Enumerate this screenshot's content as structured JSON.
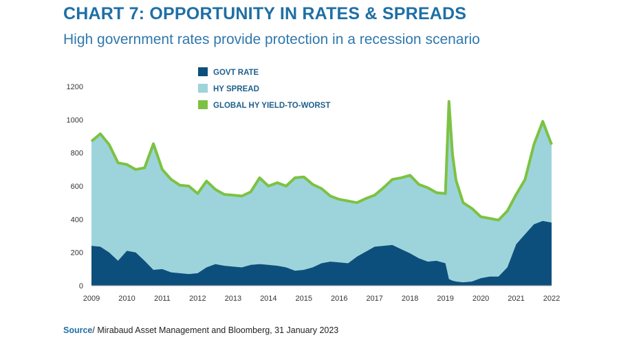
{
  "header": {
    "title": "CHART 7: OPPORTUNITY IN RATES & SPREADS",
    "subtitle": "High government rates provide protection in a recession scenario"
  },
  "footer": {
    "source_label": "Source",
    "source_text": "/ Mirabaud Asset Management and Bloomberg, 31 January 2023"
  },
  "colors": {
    "govt_rate": "#0d4f7c",
    "hy_spread": "#9dd4dc",
    "ytw": "#7cc242"
  },
  "chart_data": {
    "type": "area",
    "title": "CHART 7: OPPORTUNITY IN RATES & SPREADS",
    "subtitle": "High government rates provide protection in a recession scenario",
    "xlabel": "",
    "ylabel": "",
    "ylim": [
      0,
      1200
    ],
    "xlim": [
      2009,
      2022
    ],
    "grid": false,
    "legend_position": "top-center",
    "x_ticks": [
      "2009",
      "2010",
      "2011",
      "2012",
      "2013",
      "2014",
      "2015",
      "2016",
      "2017",
      "2018",
      "2019",
      "2020",
      "2021",
      "2022"
    ],
    "y_ticks": [
      "0",
      "200",
      "400",
      "600",
      "800",
      "1000",
      "1200"
    ],
    "x": [
      2009.0,
      2009.25,
      2009.5,
      2009.75,
      2010.0,
      2010.25,
      2010.5,
      2010.75,
      2011.0,
      2011.25,
      2011.5,
      2011.75,
      2012.0,
      2012.25,
      2012.5,
      2012.75,
      2013.0,
      2013.25,
      2013.5,
      2013.75,
      2014.0,
      2014.25,
      2014.5,
      2014.75,
      2015.0,
      2015.25,
      2015.5,
      2015.75,
      2016.0,
      2016.25,
      2016.5,
      2016.75,
      2017.0,
      2017.25,
      2017.5,
      2017.75,
      2018.0,
      2018.25,
      2018.5,
      2018.75,
      2019.0,
      2019.1,
      2019.2,
      2019.3,
      2019.5,
      2019.75,
      2020.0,
      2020.25,
      2020.5,
      2020.75,
      2021.0,
      2021.25,
      2021.5,
      2021.75,
      2022.0
    ],
    "series": [
      {
        "name": "GOVT RATE",
        "stacked": true,
        "values": [
          240,
          235,
          200,
          150,
          210,
          200,
          150,
          95,
          100,
          80,
          75,
          70,
          75,
          110,
          130,
          120,
          115,
          110,
          125,
          130,
          125,
          120,
          110,
          90,
          95,
          110,
          135,
          145,
          140,
          135,
          175,
          205,
          235,
          240,
          245,
          220,
          195,
          165,
          145,
          150,
          135,
          40,
          30,
          25,
          20,
          25,
          45,
          55,
          55,
          110,
          250,
          310,
          370,
          390,
          380
        ]
      },
      {
        "name": "HY SPREAD",
        "stacked": true,
        "values": [
          630,
          680,
          650,
          590,
          520,
          500,
          560,
          760,
          600,
          560,
          530,
          530,
          480,
          520,
          450,
          430,
          430,
          430,
          440,
          520,
          475,
          500,
          490,
          560,
          560,
          500,
          450,
          395,
          380,
          375,
          325,
          320,
          310,
          350,
          395,
          430,
          470,
          445,
          445,
          410,
          420,
          1070,
          760,
          610,
          480,
          440,
          370,
          350,
          340,
          340,
          300,
          330,
          480,
          600,
          470
        ]
      },
      {
        "name": "GLOBAL HY YIELD-TO-WORST",
        "type": "line",
        "values": [
          870,
          915,
          850,
          740,
          730,
          700,
          710,
          855,
          700,
          640,
          605,
          600,
          555,
          630,
          580,
          550,
          545,
          540,
          565,
          650,
          600,
          620,
          600,
          650,
          655,
          610,
          585,
          540,
          520,
          510,
          500,
          525,
          545,
          590,
          640,
          650,
          665,
          610,
          590,
          560,
          555,
          1110,
          790,
          635,
          500,
          465,
          415,
          405,
          395,
          450,
          550,
          640,
          850,
          990,
          850
        ]
      }
    ]
  }
}
